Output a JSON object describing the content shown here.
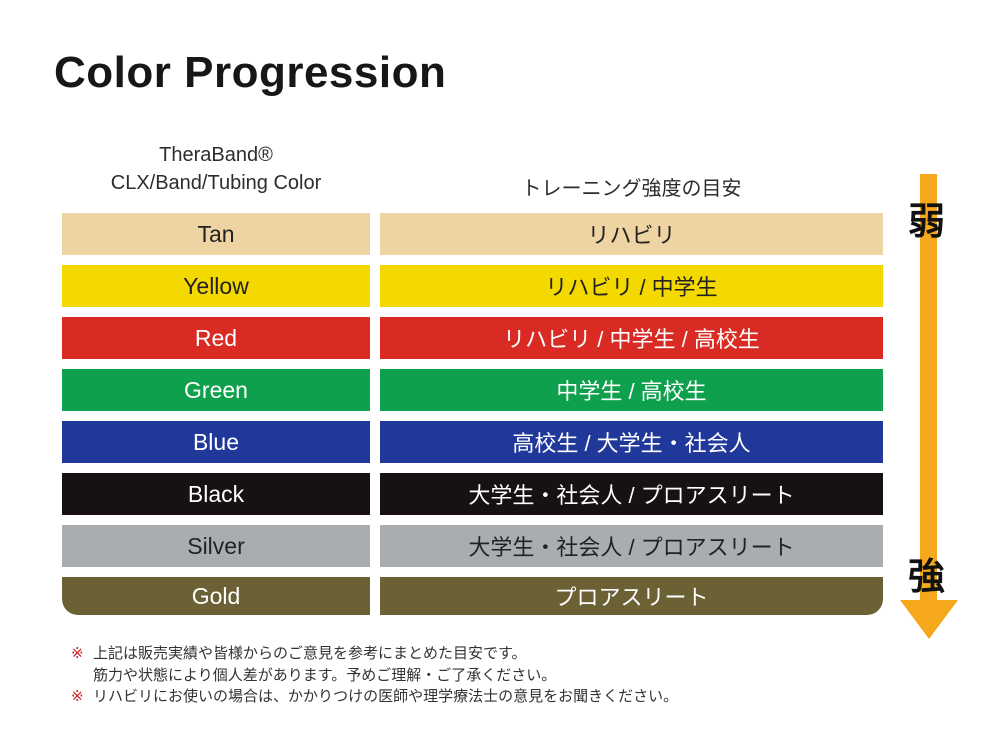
{
  "title": "Color Progression",
  "table": {
    "header_left": {
      "line1": "TheraBand®",
      "line2": "CLX/Band/Tubing Color"
    },
    "header_right": "トレーニング強度の目安",
    "rows": [
      {
        "name": "Tan",
        "usage": "リハビリ",
        "bg": "#EED4A3",
        "fg": "#222222"
      },
      {
        "name": "Yellow",
        "usage": "リハビリ / 中学生",
        "bg": "#F4D900",
        "fg": "#222222"
      },
      {
        "name": "Red",
        "usage": "リハビリ / 中学生 / 高校生",
        "bg": "#D92B24",
        "fg": "#FFFFFF"
      },
      {
        "name": "Green",
        "usage": "中学生 / 高校生",
        "bg": "#0EA04C",
        "fg": "#FFFFFF"
      },
      {
        "name": "Blue",
        "usage": "高校生 / 大学生・社会人",
        "bg": "#21389B",
        "fg": "#FFFFFF"
      },
      {
        "name": "Black",
        "usage": "大学生・社会人 / プロアスリート",
        "bg": "#171111",
        "fg": "#FFFFFF"
      },
      {
        "name": "Silver",
        "usage": "大学生・社会人 / プロアスリート",
        "bg": "#AAADB0",
        "fg": "#222222"
      },
      {
        "name": "Gold",
        "usage": "プロアスリート",
        "bg": "#6C6134",
        "fg": "#FFFFFF"
      }
    ]
  },
  "intensity_scale": {
    "weak_label": "弱",
    "strong_label": "強",
    "arrow_color": "#F5A81C"
  },
  "footnotes": [
    {
      "marker": "※",
      "text": "上記は販売実績や皆様からのご意見を参考にまとめた目安です。"
    },
    {
      "marker": "",
      "text": "筋力や状態により個人差があります。予めご理解・ご了承ください。"
    },
    {
      "marker": "※",
      "text": "リハビリにお使いの場合は、かかりつけの医師や理学療法士の意見をお聞きください。"
    }
  ],
  "colors": {
    "footnote_marker": "#CC2222"
  }
}
